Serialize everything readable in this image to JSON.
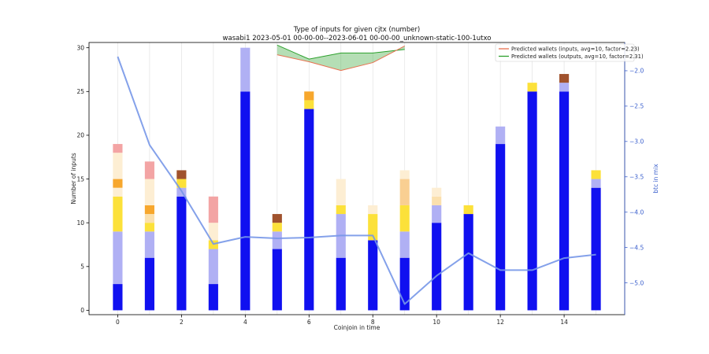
{
  "chart_data": {
    "type": "bar",
    "title": "Type of inputs for given cjtx (number)",
    "subtitle": "wasabi1 2023-05-01 00-00-00--2023-06-01 00-00-00_unknown-static-100-1utxo",
    "xlabel": "Coinjoin in time",
    "ylabel": "Number of inputs",
    "ylabel_right": "btc in mix",
    "x_ticks": [
      "0",
      "2",
      "4",
      "6",
      "8",
      "10",
      "12",
      "14"
    ],
    "y_ticks": [
      "0",
      "5",
      "10",
      "15",
      "20",
      "25",
      "30"
    ],
    "y_right_ticks": [
      "−2.0",
      "−2.5",
      "−3.0",
      "−3.5",
      "−4.0",
      "−4.5",
      "−5.0"
    ],
    "xlim": [
      -0.9,
      15.9
    ],
    "ylim": [
      -0.5,
      30.6
    ],
    "y_right_lim": [
      -5.45,
      -1.6
    ],
    "grid": "vertical",
    "legend_position": "top-right",
    "legend": [
      "Predicted wallets (inputs, avg=10, factor=2.23)",
      "Predicted wallets (outputs, avg=10, factor=2.31)"
    ],
    "colors": {
      "seg1": "#1010f0",
      "seg2": "#b0b0f4",
      "seg3": "#fce13a",
      "seg4": "#fdeed3",
      "seg5": "#f9cf92",
      "seg6": "#f7a72d",
      "seg7": "#fbe0ad",
      "seg8": "#f3a4a4",
      "seg9": "#a0522d",
      "btc_line": "#7797e8",
      "wallets_inputs": "#e8704f",
      "wallets_outputs": "#2ca02c",
      "right_axis": "#3a5fcd"
    },
    "x": [
      0,
      1,
      2,
      3,
      4,
      5,
      6,
      7,
      8,
      9,
      10,
      11,
      12,
      13,
      14,
      15
    ],
    "stacks": [
      [
        {
          "s": "seg1",
          "v": 3
        },
        {
          "s": "seg2",
          "v": 6
        },
        {
          "s": "seg3",
          "v": 4
        },
        {
          "s": "seg4",
          "v": 1
        },
        {
          "s": "seg6",
          "v": 1
        },
        {
          "s": "seg4",
          "v": 3
        },
        {
          "s": "seg8",
          "v": 1
        }
      ],
      [
        {
          "s": "seg1",
          "v": 6
        },
        {
          "s": "seg2",
          "v": 3
        },
        {
          "s": "seg3",
          "v": 1
        },
        {
          "s": "seg7",
          "v": 1
        },
        {
          "s": "seg6",
          "v": 1
        },
        {
          "s": "seg4",
          "v": 3
        },
        {
          "s": "seg8",
          "v": 2
        }
      ],
      [
        {
          "s": "seg1",
          "v": 13
        },
        {
          "s": "seg2",
          "v": 1
        },
        {
          "s": "seg3",
          "v": 1
        },
        {
          "s": "seg9",
          "v": 1
        }
      ],
      [
        {
          "s": "seg1",
          "v": 3
        },
        {
          "s": "seg2",
          "v": 4
        },
        {
          "s": "seg3",
          "v": 1
        },
        {
          "s": "seg4",
          "v": 2
        },
        {
          "s": "seg8",
          "v": 3
        }
      ],
      [
        {
          "s": "seg1",
          "v": 25
        },
        {
          "s": "seg2",
          "v": 5
        }
      ],
      [
        {
          "s": "seg1",
          "v": 7
        },
        {
          "s": "seg2",
          "v": 2
        },
        {
          "s": "seg3",
          "v": 1
        },
        {
          "s": "seg9",
          "v": 1
        }
      ],
      [
        {
          "s": "seg1",
          "v": 23
        },
        {
          "s": "seg3",
          "v": 1
        },
        {
          "s": "seg6",
          "v": 1
        }
      ],
      [
        {
          "s": "seg1",
          "v": 6
        },
        {
          "s": "seg2",
          "v": 5
        },
        {
          "s": "seg3",
          "v": 1
        },
        {
          "s": "seg4",
          "v": 3
        }
      ],
      [
        {
          "s": "seg1",
          "v": 8
        },
        {
          "s": "seg3",
          "v": 3
        },
        {
          "s": "seg4",
          "v": 1
        }
      ],
      [
        {
          "s": "seg1",
          "v": 6
        },
        {
          "s": "seg2",
          "v": 3
        },
        {
          "s": "seg3",
          "v": 3
        },
        {
          "s": "seg5",
          "v": 3
        },
        {
          "s": "seg4",
          "v": 1
        }
      ],
      [
        {
          "s": "seg1",
          "v": 10
        },
        {
          "s": "seg2",
          "v": 2
        },
        {
          "s": "seg7",
          "v": 1
        },
        {
          "s": "seg4",
          "v": 1
        }
      ],
      [
        {
          "s": "seg1",
          "v": 11
        },
        {
          "s": "seg3",
          "v": 1
        }
      ],
      [
        {
          "s": "seg1",
          "v": 19
        },
        {
          "s": "seg2",
          "v": 2
        }
      ],
      [
        {
          "s": "seg1",
          "v": 25
        },
        {
          "s": "seg3",
          "v": 1
        }
      ],
      [
        {
          "s": "seg1",
          "v": 25
        },
        {
          "s": "seg2",
          "v": 1
        },
        {
          "s": "seg9",
          "v": 1
        }
      ],
      [
        {
          "s": "seg1",
          "v": 14
        },
        {
          "s": "seg2",
          "v": 1
        },
        {
          "s": "seg3",
          "v": 1
        }
      ]
    ],
    "btc_in_mix": [
      -1.8,
      -3.05,
      -3.7,
      -4.45,
      -4.35,
      -4.37,
      -4.36,
      -4.33,
      -4.33,
      -5.3,
      -4.9,
      -4.58,
      -4.82,
      -4.82,
      -4.65,
      -4.6
    ],
    "wallets_inputs": {
      "x": [
        5,
        6,
        7,
        8,
        9
      ],
      "y": [
        29.2,
        28.4,
        27.4,
        28.3,
        30.2
      ]
    },
    "wallets_outputs": {
      "x": [
        5,
        6,
        7,
        8,
        9
      ],
      "y": [
        30.3,
        28.7,
        29.4,
        29.4,
        29.8
      ]
    }
  }
}
